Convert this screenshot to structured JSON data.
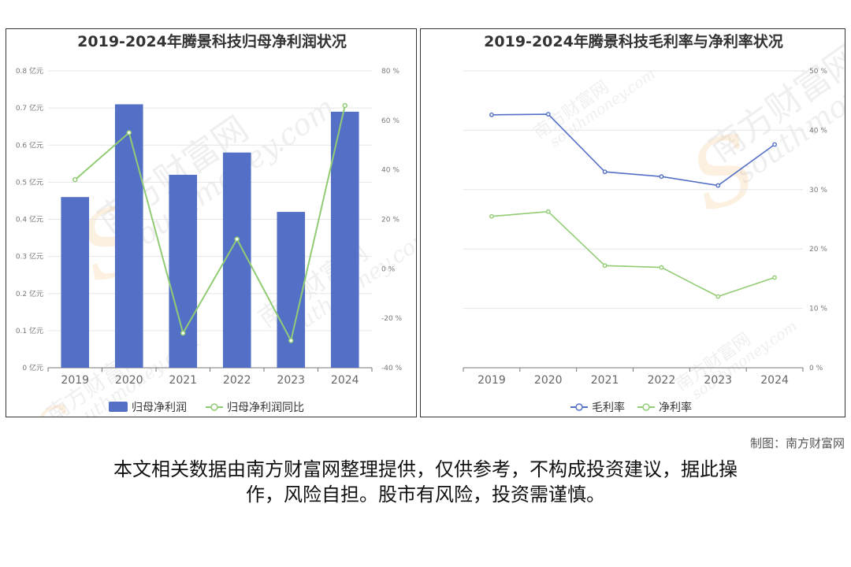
{
  "chart_data": [
    {
      "type": "bar",
      "title": "2019-2024年腾景科技归母净利润状况",
      "categories": [
        "2019",
        "2020",
        "2021",
        "2022",
        "2023",
        "2024"
      ],
      "series": [
        {
          "name": "归母净利润",
          "type": "bar",
          "axis": "left",
          "values": [
            0.46,
            0.71,
            0.52,
            0.58,
            0.42,
            0.69
          ]
        },
        {
          "name": "归母净利润同比",
          "type": "line",
          "axis": "right",
          "values": [
            36,
            55,
            -26,
            12,
            -29,
            66
          ]
        }
      ],
      "left_axis": {
        "min": 0,
        "max": 0.8,
        "ticks": [
          0,
          0.1,
          0.2,
          0.3,
          0.4,
          0.5,
          0.6,
          0.7,
          0.8
        ],
        "labels": [
          "0 亿元",
          "0.1 亿元",
          "0.2 亿元",
          "0.3 亿元",
          "0.4 亿元",
          "0.5 亿元",
          "0.6 亿元",
          "0.7 亿元",
          "0.8 亿元"
        ]
      },
      "right_axis": {
        "min": -40,
        "max": 80,
        "ticks": [
          -40,
          -20,
          0,
          20,
          40,
          60,
          80
        ],
        "labels": [
          "-40 %",
          "-20 %",
          "0 %",
          "20 %",
          "40 %",
          "60 %",
          "80 %"
        ]
      },
      "legend_position": "bottom",
      "colors": {
        "bar": "#5470c6",
        "line": "#91cc75"
      }
    },
    {
      "type": "line",
      "title": "2019-2024年腾景科技毛利率与净利率状况",
      "categories": [
        "2019",
        "2020",
        "2021",
        "2022",
        "2023",
        "2024"
      ],
      "series": [
        {
          "name": "毛利率",
          "values": [
            42.6,
            42.7,
            33.0,
            32.2,
            30.7,
            37.6
          ]
        },
        {
          "name": "净利率",
          "values": [
            25.5,
            26.3,
            17.2,
            16.9,
            12.0,
            15.2
          ]
        }
      ],
      "right_axis": {
        "min": 0,
        "max": 50,
        "ticks": [
          0,
          10,
          20,
          30,
          40,
          50
        ],
        "labels": [
          "0 %",
          "10 %",
          "20 %",
          "30 %",
          "40 %",
          "50 %"
        ]
      },
      "legend_position": "bottom",
      "colors": {
        "series1": "#5470c6",
        "series2": "#91cc75"
      }
    }
  ],
  "footer": {
    "credit": "制图：南方财富网",
    "disclaimer_line1": "本文相关数据由南方财富网整理提供，仅供参考，不构成投资建议，据此操",
    "disclaimer_line2": "作，风险自担。股市有风险，投资需谨慎。"
  },
  "watermark": {
    "cn": "南方财富网",
    "en": "southmoney.com",
    "s": "S"
  }
}
